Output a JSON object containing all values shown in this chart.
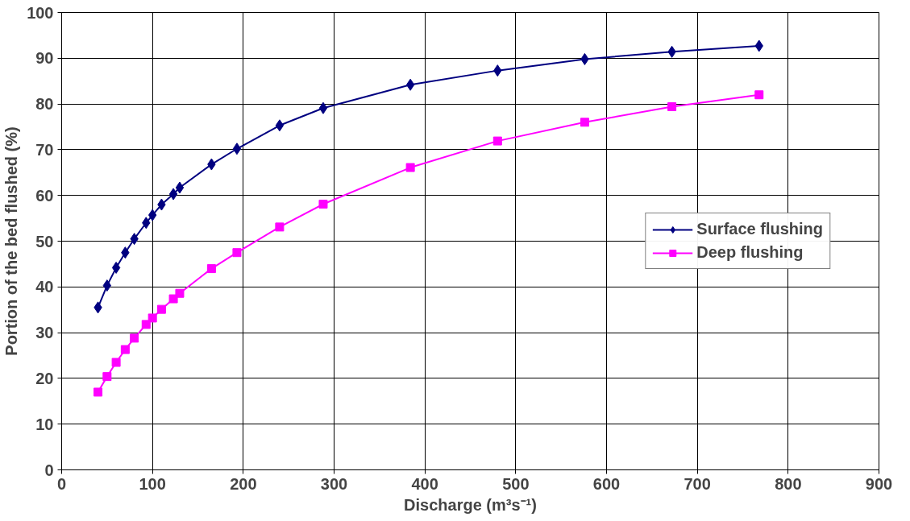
{
  "chart_data": {
    "type": "line",
    "xlabel": "Discharge (m³s⁻¹)",
    "ylabel": "Portion of the bed flushed (%)",
    "xlim": [
      0,
      900
    ],
    "xticks": [
      0,
      100,
      200,
      300,
      400,
      500,
      600,
      700,
      800,
      900
    ],
    "ylim": [
      0,
      100
    ],
    "yticks": [
      0,
      10,
      20,
      30,
      40,
      50,
      60,
      70,
      80,
      90,
      100
    ],
    "grid": true,
    "legend": "right",
    "line_style": "solid",
    "x": [
      40,
      50,
      60,
      70,
      80,
      93,
      100,
      110,
      123,
      130,
      165,
      193,
      240,
      288,
      384,
      480,
      576,
      672,
      768
    ],
    "series": [
      {
        "name": "Surface flushing",
        "color": "#000080",
        "marker": "diamond",
        "values": [
          35.5,
          40.3,
          44.2,
          47.5,
          50.5,
          54,
          55.7,
          58,
          60.3,
          61.7,
          66.8,
          70.2,
          75.3,
          79.1,
          84.2,
          87.3,
          89.8,
          91.4,
          92.7
        ]
      },
      {
        "name": "Deep flushing",
        "color": "#ff00ff",
        "marker": "square",
        "values": [
          17,
          20.4,
          23.5,
          26.3,
          28.8,
          31.8,
          33.2,
          35.1,
          37.4,
          38.6,
          44,
          47.5,
          53.1,
          58.1,
          66.1,
          71.9,
          76,
          79.4,
          82
        ]
      }
    ]
  }
}
